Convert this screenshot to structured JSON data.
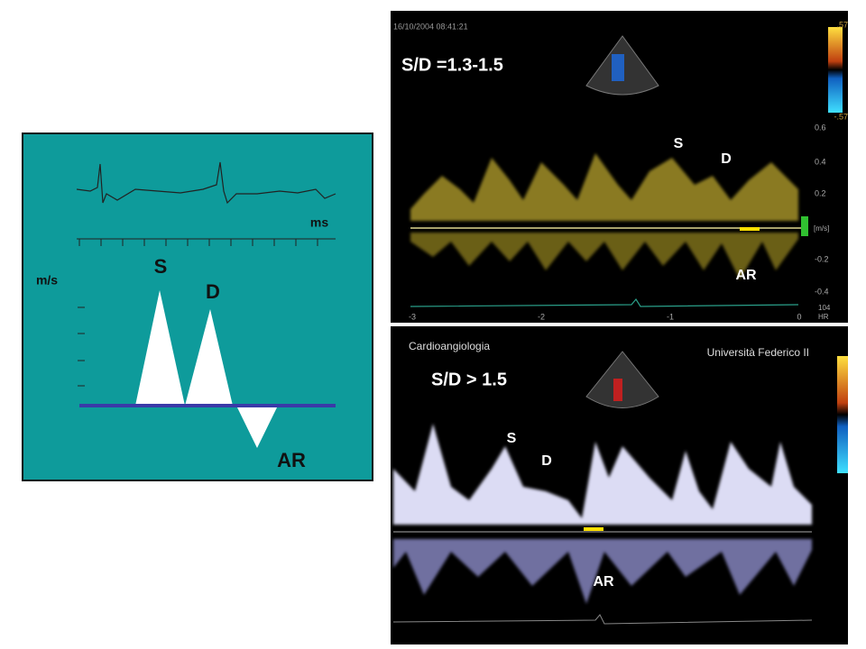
{
  "schematic": {
    "y_label": "m/s",
    "x_label": "ms",
    "peaks": {
      "s": "S",
      "d": "D",
      "ar": "AR"
    }
  },
  "doppler_top": {
    "timestamp": "16/10/2004 08:41:21",
    "ratio": "S/D =1.3-1.5",
    "labels": {
      "s": "S",
      "d": "D",
      "ar": "AR"
    },
    "velocity_ticks": [
      "0.6",
      "0.4",
      "0.2",
      "-0.2",
      "-0.4"
    ],
    "unit": "[m/s]",
    "time_ticks": [
      "-3",
      "-2",
      "-1",
      "0"
    ],
    "heart_rate": "104",
    "heart_rate_label": "HR",
    "scale_max": ".57",
    "scale_min": "-.57"
  },
  "doppler_bottom": {
    "left_caption": "Cardioangiologia",
    "right_caption": "Università Federico II",
    "ratio": "S/D > 1.5",
    "labels": {
      "s": "S",
      "d": "D",
      "ar": "AR"
    }
  }
}
